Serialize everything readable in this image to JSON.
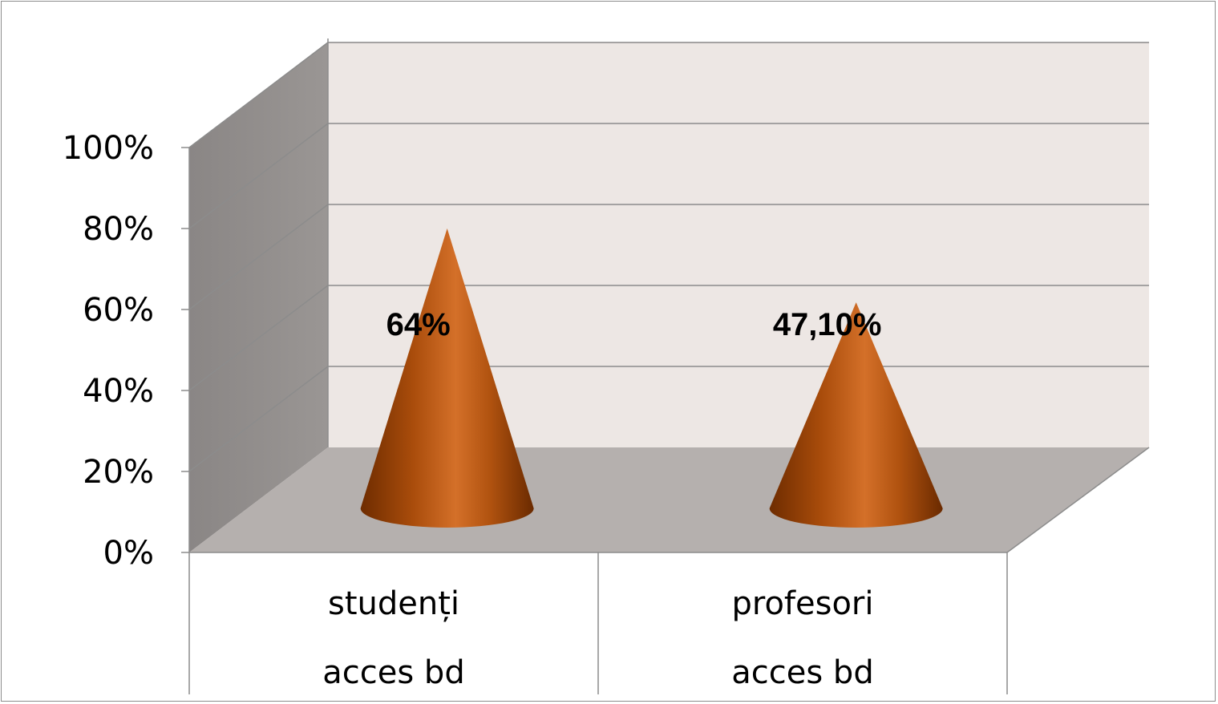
{
  "chart_data": {
    "type": "bar",
    "style": "3d-cone",
    "categories": [
      [
        "studenți",
        "acces bd"
      ],
      [
        "profesori",
        "acces bd"
      ]
    ],
    "values": [
      64,
      47.1
    ],
    "data_labels": [
      "64%",
      "47,10%"
    ],
    "ylim": [
      0,
      100
    ],
    "y_ticks": [
      "0%",
      "20%",
      "40%",
      "60%",
      "80%",
      "100%"
    ],
    "grid": true,
    "legend": "none",
    "colors": {
      "cone_dark": "#7a3100",
      "cone_mid": "#b2530f",
      "cone_light": "#d9732a",
      "back_wall": "#ede7e4",
      "side_wall": "#8f8b89",
      "floor": "#b5b0ae",
      "gridline": "#8c8c8c"
    }
  }
}
